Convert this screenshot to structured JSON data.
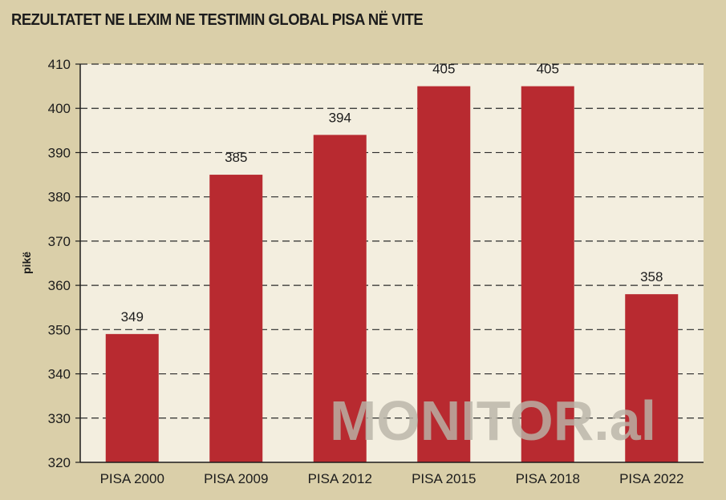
{
  "chart_data": {
    "type": "bar",
    "title": "REZULTATET NE LEXIM NE TESTIMIN GLOBAL PISA NË VITE",
    "ylabel": "pikë",
    "xlabel": "",
    "categories": [
      "PISA 2000",
      "PISA 2009",
      "PISA 2012",
      "PISA 2015",
      "PISA 2018",
      "PISA 2022"
    ],
    "values": [
      349,
      385,
      394,
      405,
      405,
      358
    ],
    "ylim": [
      320,
      410
    ],
    "yticks": [
      320,
      330,
      340,
      350,
      360,
      370,
      380,
      390,
      400,
      410
    ],
    "grid": true,
    "bar_color": "#b82a30",
    "plot_background": "#f3eedf",
    "page_background": "#dacfa9"
  },
  "watermark": "MONITOR.al"
}
